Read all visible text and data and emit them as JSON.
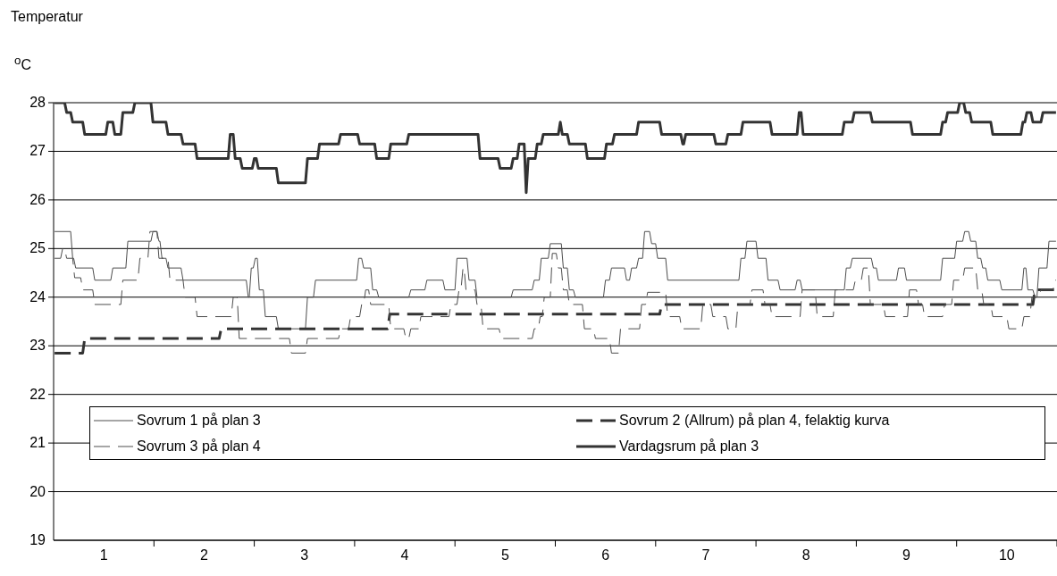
{
  "chart_data": {
    "type": "line",
    "title": "Temperatur",
    "ylabel": "$^{o}$C",
    "xlim": [
      0.5,
      10.5
    ],
    "xticks": [
      1,
      {
        "value": 1.5,
        "label": null
      },
      2,
      {
        "value": 2.5,
        "label": null
      },
      3,
      {
        "value": 3.5,
        "label": null
      },
      4,
      {
        "value": 4.5,
        "label": null
      },
      5,
      {
        "value": 5.5,
        "label": null
      },
      6,
      {
        "value": 6.5,
        "label": null
      },
      7,
      {
        "value": 7.5,
        "label": null
      },
      8,
      {
        "value": 8.5,
        "label": null
      },
      9,
      {
        "value": 9.5,
        "label": null
      },
      10,
      {
        "value": 10.5,
        "label": null
      }
    ],
    "ylim": [
      19,
      28
    ],
    "yticks": [
      19,
      20,
      21,
      22,
      23,
      24,
      25,
      26,
      27,
      28
    ],
    "grid": "y",
    "legend": "bottom",
    "line_style": "solid",
    "series": [
      {
        "name": "Sovrum 1 på plan 3",
        "color": "#4d4d4d",
        "x": [
          0.51,
          0.67,
          0.69,
          0.7,
          0.72,
          0.89,
          0.91,
          1.07,
          1.09,
          1.22,
          1.24,
          1.47,
          1.49,
          1.53,
          1.55,
          1.56,
          1.58,
          1.62,
          1.64,
          1.77,
          1.79,
          2.42,
          2.44,
          2.45,
          2.47,
          2.49,
          2.51,
          2.53,
          2.55,
          2.59,
          2.61,
          2.72,
          2.74,
          3.01,
          3.03,
          3.09,
          3.11,
          3.52,
          3.54,
          3.57,
          3.59,
          3.66,
          3.68,
          3.72,
          3.74,
          4.04,
          4.06,
          4.2,
          4.22,
          4.38,
          4.4,
          4.5,
          4.52,
          4.62,
          4.64,
          4.7,
          4.72,
          5.06,
          5.08,
          5.27,
          5.29,
          5.34,
          5.36,
          5.43,
          5.45,
          5.56,
          5.58,
          5.62,
          5.64,
          5.68,
          5.7,
          5.98,
          6.0,
          6.04,
          6.06,
          6.19,
          6.21,
          6.24,
          6.26,
          6.31,
          6.33,
          6.37,
          6.39,
          6.44,
          6.46,
          6.5,
          6.52,
          6.6,
          6.62,
          7.33,
          7.35,
          7.39,
          7.41,
          7.5,
          7.52,
          7.6,
          7.62,
          7.72,
          7.74,
          7.89,
          7.91,
          7.94,
          7.96,
          8.38,
          8.4,
          8.44,
          8.46,
          8.65,
          8.67,
          8.7,
          8.72,
          8.9,
          8.92,
          8.98,
          9.0,
          9.34,
          9.36,
          9.48,
          9.5,
          9.56,
          9.58,
          9.62,
          9.64,
          9.69,
          9.71,
          9.74,
          9.76,
          9.79,
          9.81,
          9.93,
          9.95,
          10.15,
          10.17,
          10.19,
          10.21,
          10.26,
          10.28,
          10.3,
          10.32,
          10.4,
          10.42,
          10.49
        ],
        "values": [
          25.35,
          25.35,
          24.8,
          24.8,
          24.6,
          24.6,
          24.35,
          24.35,
          24.6,
          24.6,
          25.15,
          25.15,
          25.35,
          25.35,
          25.15,
          25.15,
          24.8,
          24.8,
          24.6,
          24.6,
          24.35,
          24.35,
          24.0,
          24.0,
          24.6,
          24.6,
          24.8,
          24.8,
          24.15,
          24.15,
          23.6,
          23.6,
          23.35,
          23.35,
          24.0,
          24.0,
          24.35,
          24.35,
          24.8,
          24.8,
          24.6,
          24.6,
          24.15,
          24.15,
          24.0,
          24.0,
          24.15,
          24.15,
          24.35,
          24.35,
          24.15,
          24.15,
          24.8,
          24.8,
          24.35,
          24.35,
          24.0,
          24.0,
          24.15,
          24.15,
          24.35,
          24.35,
          24.8,
          24.8,
          25.1,
          25.1,
          24.6,
          24.6,
          24.15,
          24.15,
          24.0,
          24.0,
          24.35,
          24.35,
          24.6,
          24.6,
          24.35,
          24.35,
          24.6,
          24.6,
          24.8,
          24.8,
          25.35,
          25.35,
          25.1,
          25.1,
          24.8,
          24.8,
          24.35,
          24.35,
          24.8,
          24.8,
          25.15,
          25.15,
          24.8,
          24.8,
          24.35,
          24.35,
          24.15,
          24.15,
          24.35,
          24.35,
          24.15,
          24.15,
          24.6,
          24.6,
          24.8,
          24.8,
          24.6,
          24.6,
          24.35,
          24.35,
          24.6,
          24.6,
          24.35,
          24.35,
          24.8,
          24.8,
          25.15,
          25.15,
          25.35,
          25.35,
          25.15,
          25.15,
          24.8,
          24.8,
          24.6,
          24.6,
          24.35,
          24.35,
          24.15,
          24.15,
          24.6,
          24.6,
          24.15,
          24.15,
          24.0,
          24.0,
          24.6,
          24.6,
          25.15,
          25.15
        ]
      },
      {
        "name": "Sovrum 2 (Allrum) på plan 4, felaktig kurva",
        "color": "#333333",
        "line_style": "dashed",
        "x": [
          0.51,
          0.79,
          0.81,
          2.15,
          2.17,
          3.83,
          3.85,
          6.54,
          6.56,
          10.26,
          10.28,
          10.49
        ],
        "values": [
          22.85,
          22.85,
          23.15,
          23.15,
          23.35,
          23.35,
          23.65,
          23.65,
          23.85,
          23.85,
          24.15,
          24.15
        ]
      },
      {
        "name": "Sovrum 3 på plan 4",
        "color": "#4d4d4d",
        "line_style": "dashed",
        "x": [
          0.51,
          0.57,
          0.59,
          0.61,
          0.63,
          0.69,
          0.71,
          0.77,
          0.79,
          0.89,
          0.91,
          1.17,
          1.19,
          1.34,
          1.36,
          1.44,
          1.46,
          1.53,
          1.55,
          1.64,
          1.66,
          1.79,
          1.81,
          1.91,
          1.93,
          2.27,
          2.29,
          2.33,
          2.35,
          2.85,
          2.87,
          3.01,
          3.03,
          3.34,
          3.36,
          3.44,
          3.46,
          3.55,
          3.57,
          3.59,
          3.61,
          3.64,
          3.66,
          3.84,
          3.86,
          3.99,
          4.01,
          4.04,
          4.06,
          4.14,
          4.16,
          4.44,
          4.46,
          4.52,
          4.54,
          4.56,
          4.58,
          4.59,
          4.61,
          4.7,
          4.72,
          4.76,
          4.78,
          4.94,
          4.96,
          5.27,
          5.29,
          5.33,
          5.35,
          5.37,
          5.39,
          5.45,
          5.47,
          5.51,
          5.53,
          5.56,
          5.58,
          5.62,
          5.64,
          5.77,
          5.79,
          5.88,
          5.9,
          6.04,
          6.06,
          6.13,
          6.15,
          6.34,
          6.36,
          6.4,
          6.42,
          6.6,
          6.62,
          6.74,
          6.76,
          6.95,
          6.97,
          7.05,
          7.07,
          7.2,
          7.22,
          7.3,
          7.32,
          7.44,
          7.46,
          7.57,
          7.59,
          7.64,
          7.66,
          7.94,
          7.96,
          8.09,
          8.11,
          8.27,
          8.29,
          8.47,
          8.49,
          8.55,
          8.57,
          8.62,
          8.64,
          8.77,
          8.79,
          9.01,
          9.03,
          9.1,
          9.12,
          9.16,
          9.18,
          9.36,
          9.38,
          9.45,
          9.47,
          9.56,
          9.58,
          9.69,
          9.71,
          9.75,
          9.77,
          9.84,
          9.86,
          10.0,
          10.02,
          10.15,
          10.17,
          10.23,
          10.25,
          10.32,
          10.34,
          10.46,
          10.48,
          10.49
        ],
        "values": [
          24.8,
          24.8,
          25.0,
          25.0,
          24.8,
          24.8,
          24.4,
          24.4,
          24.15,
          24.15,
          23.85,
          23.85,
          24.35,
          24.35,
          24.8,
          24.8,
          25.35,
          25.35,
          24.8,
          24.8,
          24.35,
          24.35,
          24.0,
          24.0,
          23.6,
          23.6,
          24.0,
          24.0,
          23.15,
          23.15,
          22.85,
          22.85,
          23.15,
          23.15,
          23.35,
          23.35,
          23.6,
          23.6,
          23.85,
          23.85,
          24.15,
          24.15,
          23.85,
          23.85,
          23.35,
          23.35,
          23.15,
          23.15,
          23.35,
          23.35,
          23.6,
          23.6,
          23.85,
          23.85,
          24.15,
          24.15,
          24.6,
          24.6,
          24.15,
          24.15,
          23.85,
          23.85,
          23.35,
          23.35,
          23.15,
          23.15,
          23.35,
          23.35,
          23.6,
          23.6,
          24.0,
          24.0,
          24.9,
          24.9,
          24.6,
          24.6,
          24.15,
          24.15,
          23.85,
          23.85,
          23.35,
          23.35,
          23.15,
          23.15,
          22.85,
          22.85,
          23.35,
          23.35,
          23.85,
          23.85,
          24.1,
          24.1,
          23.6,
          23.6,
          23.35,
          23.35,
          23.85,
          23.85,
          23.6,
          23.6,
          23.35,
          23.35,
          23.85,
          23.85,
          24.15,
          24.15,
          23.85,
          23.85,
          23.6,
          23.6,
          24.15,
          24.15,
          23.6,
          23.6,
          24.15,
          24.15,
          24.35,
          24.35,
          24.6,
          24.6,
          23.85,
          23.85,
          23.6,
          23.6,
          24.15,
          24.15,
          23.85,
          23.85,
          23.6,
          23.6,
          23.85,
          23.85,
          24.35,
          24.35,
          24.6,
          24.6,
          24.15,
          24.15,
          23.85,
          23.85,
          23.6,
          23.6,
          23.35,
          23.35,
          23.6,
          23.6,
          24.0,
          24.0,
          24.15,
          24.15,
          24.35,
          24.35
        ]
      },
      {
        "name": "Vardagsrum på plan 3",
        "color": "#333333",
        "x": [
          0.51,
          0.61,
          0.63,
          0.67,
          0.69,
          0.79,
          0.81,
          1.02,
          1.04,
          1.09,
          1.11,
          1.17,
          1.19,
          1.29,
          1.31,
          1.47,
          1.49,
          1.62,
          1.64,
          1.77,
          1.79,
          1.91,
          1.93,
          2.24,
          2.26,
          2.29,
          2.31,
          2.36,
          2.38,
          2.48,
          2.5,
          2.52,
          2.54,
          2.72,
          2.74,
          3.01,
          3.03,
          3.13,
          3.15,
          3.34,
          3.36,
          3.53,
          3.55,
          3.7,
          3.72,
          3.84,
          3.86,
          4.02,
          4.04,
          4.73,
          4.75,
          4.93,
          4.95,
          5.06,
          5.08,
          5.12,
          5.14,
          5.19,
          5.21,
          5.23,
          5.3,
          5.32,
          5.36,
          5.38,
          5.53,
          5.55,
          5.57,
          5.62,
          5.64,
          5.8,
          5.82,
          5.99,
          6.01,
          6.07,
          6.09,
          6.31,
          6.33,
          6.54,
          6.56,
          6.75,
          6.77,
          6.78,
          6.8,
          7.08,
          7.1,
          7.2,
          7.22,
          7.35,
          7.37,
          7.64,
          7.66,
          7.91,
          7.93,
          7.95,
          7.97,
          8.36,
          8.38,
          8.46,
          8.48,
          8.64,
          8.66,
          9.04,
          9.06,
          9.34,
          9.36,
          9.39,
          9.41,
          9.51,
          9.53,
          9.57,
          9.59,
          9.63,
          9.65,
          9.84,
          9.86,
          10.14,
          10.16,
          10.18,
          10.2,
          10.24,
          10.26,
          10.34,
          10.36,
          10.49
        ],
        "values": [
          28,
          28,
          27.8,
          27.8,
          27.6,
          27.6,
          27.35,
          27.35,
          27.6,
          27.6,
          27.35,
          27.35,
          27.8,
          27.8,
          28,
          28,
          27.6,
          27.6,
          27.35,
          27.35,
          27.15,
          27.15,
          26.85,
          26.85,
          27.35,
          27.35,
          26.85,
          26.85,
          26.65,
          26.65,
          26.85,
          26.85,
          26.65,
          26.65,
          26.35,
          26.35,
          26.85,
          26.85,
          27.15,
          27.15,
          27.35,
          27.35,
          27.15,
          27.15,
          26.85,
          26.85,
          27.15,
          27.15,
          27.35,
          27.35,
          26.85,
          26.85,
          26.65,
          26.65,
          26.85,
          26.85,
          27.15,
          27.15,
          26.15,
          26.85,
          26.85,
          27.15,
          27.15,
          27.35,
          27.35,
          27.6,
          27.35,
          27.35,
          27.15,
          27.15,
          26.85,
          26.85,
          27.15,
          27.15,
          27.35,
          27.35,
          27.6,
          27.6,
          27.35,
          27.35,
          27.15,
          27.15,
          27.35,
          27.35,
          27.15,
          27.15,
          27.35,
          27.35,
          27.6,
          27.6,
          27.35,
          27.35,
          27.8,
          27.8,
          27.35,
          27.35,
          27.6,
          27.6,
          27.8,
          27.8,
          27.6,
          27.6,
          27.35,
          27.35,
          27.6,
          27.6,
          27.8,
          27.8,
          28,
          28,
          27.8,
          27.8,
          27.6,
          27.6,
          27.35,
          27.35,
          27.6,
          27.6,
          27.8,
          27.8,
          27.6,
          27.6,
          27.8,
          27.8
        ]
      }
    ]
  }
}
